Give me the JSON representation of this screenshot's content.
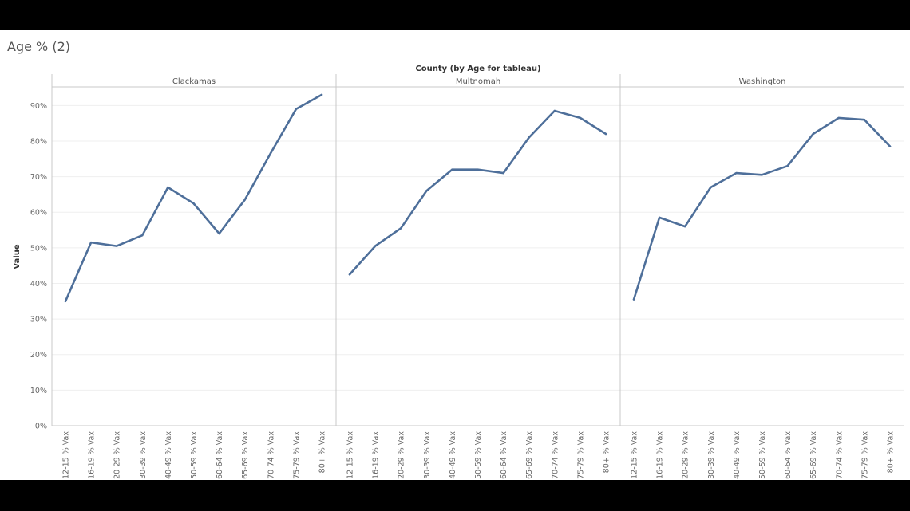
{
  "title": "Age % (2)",
  "colors": {
    "line": "#4e6f9a",
    "grid": "#efefef",
    "divider": "#c8c8c8",
    "background": "#ffffff"
  },
  "chart_data": {
    "type": "line",
    "header_title": "County (by Age for tableau)",
    "ylabel": "Value",
    "ylim": [
      0,
      95
    ],
    "yticks": [
      0,
      10,
      20,
      30,
      40,
      50,
      60,
      70,
      80,
      90
    ],
    "ytick_labels": [
      "0%",
      "10%",
      "20%",
      "30%",
      "40%",
      "50%",
      "60%",
      "70%",
      "80%",
      "90%"
    ],
    "grid": true,
    "categories": [
      "12-15 % Vax",
      "16-19 % Vax",
      "20-29 % Vax",
      "30-39 % Vax",
      "40-49 % Vax",
      "50-59 % Vax",
      "60-64 % Vax",
      "65-69 % Vax",
      "70-74 % Vax",
      "75-79 % Vax",
      "80+ % Vax"
    ],
    "panels": [
      {
        "name": "Clackamas",
        "values": [
          35.0,
          51.5,
          50.5,
          53.5,
          67.0,
          62.5,
          54.0,
          63.5,
          76.5,
          89.0,
          93.0
        ]
      },
      {
        "name": "Multnomah",
        "values": [
          42.5,
          50.5,
          55.5,
          66.0,
          72.0,
          72.0,
          71.0,
          81.0,
          88.5,
          86.5,
          82.0
        ]
      },
      {
        "name": "Washington",
        "values": [
          35.5,
          58.5,
          56.0,
          67.0,
          71.0,
          70.5,
          73.0,
          82.0,
          86.5,
          86.0,
          78.5
        ]
      }
    ]
  }
}
